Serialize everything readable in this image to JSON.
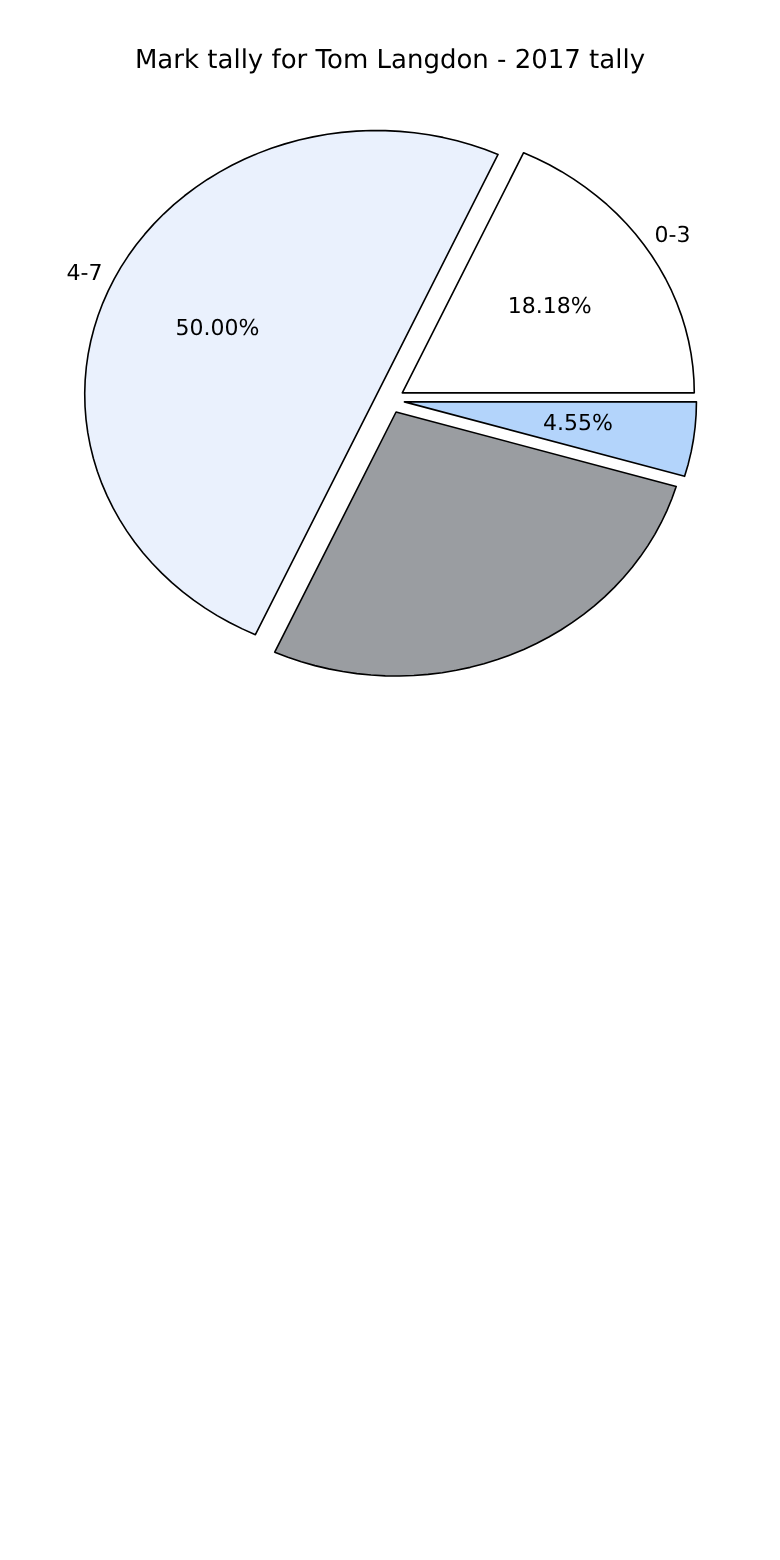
{
  "chart_data": {
    "type": "pie",
    "title": "Mark tally for Tom Langdon - 2017 tally",
    "categories": [
      "0-3",
      "4-7",
      null,
      null
    ],
    "values": [
      18.18,
      50.0,
      27.27,
      4.55
    ],
    "colors": [
      "#ffffff",
      "#eaf1fd",
      "#9a9da1",
      "#b3d4fb"
    ],
    "value_labels": [
      "18.18%",
      "50.00%",
      null,
      "4.55%"
    ]
  }
}
